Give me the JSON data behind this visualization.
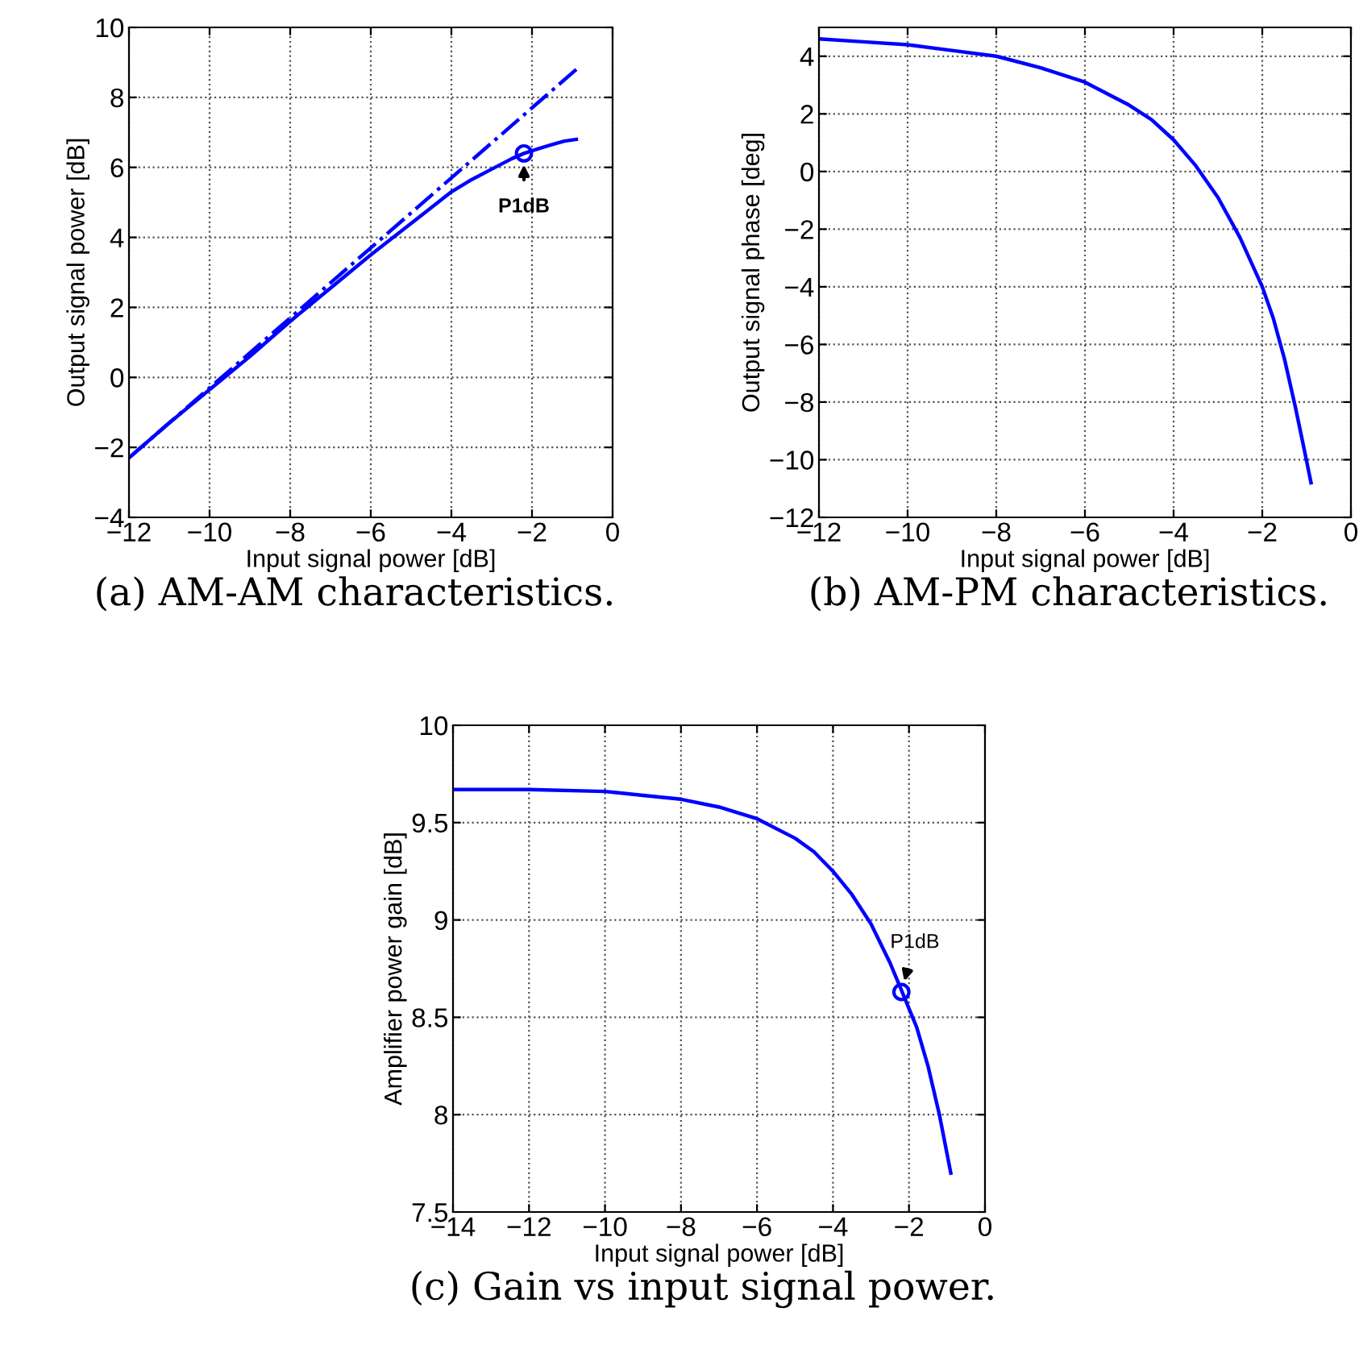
{
  "chart_data": [
    {
      "type": "line",
      "xlabel": "Input signal power [dB]",
      "ylabel": "Output signal power [dB]",
      "xlim": [
        -12,
        0
      ],
      "ylim": [
        -4,
        10
      ],
      "xticks": [
        -12,
        -10,
        -8,
        -6,
        -4,
        -2,
        0
      ],
      "yticks": [
        -4,
        -2,
        0,
        2,
        4,
        6,
        8,
        10
      ],
      "grid": true,
      "series": [
        {
          "color": "#0000ff",
          "line_style": "solid",
          "x": [
            -12,
            -11,
            -10,
            -9,
            -8,
            -7,
            -6,
            -5,
            -4,
            -3.5,
            -3,
            -2.5,
            -2.2,
            -1.8,
            -1.5,
            -1.2,
            -0.9
          ],
          "values": [
            -2.3,
            -1.3,
            -0.35,
            0.6,
            1.6,
            2.55,
            3.5,
            4.4,
            5.3,
            5.65,
            5.95,
            6.25,
            6.4,
            6.55,
            6.65,
            6.75,
            6.8
          ]
        },
        {
          "color": "#0000ff",
          "line_style": "dashdot",
          "x": [
            -12,
            -0.9
          ],
          "values": [
            -2.3,
            8.8
          ]
        },
        {
          "type": "scatter",
          "color": "#0000ff",
          "marker": "circle",
          "x": [
            -2.2
          ],
          "values": [
            6.4
          ]
        }
      ],
      "annotations": [
        {
          "text": "P1dB",
          "x": -2.2,
          "y": 6.4
        },
        "(a) AM-AM characteristics."
      ]
    },
    {
      "type": "line",
      "xlabel": "Input signal power [dB]",
      "ylabel": "Output signal phase [deg]",
      "xlim": [
        -12,
        0
      ],
      "ylim": [
        -12,
        5
      ],
      "xticks": [
        -12,
        -10,
        -8,
        -6,
        -4,
        -2,
        0
      ],
      "yticks": [
        -12,
        -10,
        -8,
        -6,
        -4,
        -2,
        0,
        2,
        4
      ],
      "grid": true,
      "series": [
        {
          "color": "#0000ff",
          "line_style": "solid",
          "x": [
            -12,
            -11,
            -10,
            -9,
            -8,
            -7,
            -6,
            -5,
            -4.5,
            -4,
            -3.5,
            -3,
            -2.5,
            -2,
            -1.75,
            -1.5,
            -1.25,
            -1.1,
            -0.9
          ],
          "values": [
            4.6,
            4.5,
            4.4,
            4.2,
            4.0,
            3.6,
            3.1,
            2.3,
            1.8,
            1.1,
            0.2,
            -0.9,
            -2.3,
            -4.0,
            -5.1,
            -6.5,
            -8.2,
            -9.3,
            -10.8
          ]
        }
      ],
      "annotations": [
        "(b) AM-PM characteristics."
      ]
    },
    {
      "type": "line",
      "xlabel": "Input signal power [dB]",
      "ylabel": "Amplifier power gain [dB]",
      "xlim": [
        -14,
        0
      ],
      "ylim": [
        7.5,
        10
      ],
      "xticks": [
        -14,
        -12,
        -10,
        -8,
        -6,
        -4,
        -2,
        0
      ],
      "yticks": [
        7.5,
        8,
        8.5,
        9,
        9.5,
        10
      ],
      "grid": true,
      "series": [
        {
          "color": "#0000ff",
          "line_style": "solid",
          "x": [
            -14,
            -12,
            -10,
            -9,
            -8,
            -7,
            -6,
            -5,
            -4.5,
            -4,
            -3.5,
            -3,
            -2.5,
            -2.2,
            -1.8,
            -1.5,
            -1.2,
            -0.9
          ],
          "values": [
            9.67,
            9.67,
            9.66,
            9.64,
            9.62,
            9.58,
            9.52,
            9.42,
            9.35,
            9.25,
            9.13,
            8.98,
            8.78,
            8.64,
            8.45,
            8.25,
            8.0,
            7.7
          ]
        },
        {
          "type": "scatter",
          "color": "#0000ff",
          "marker": "circle",
          "x": [
            -2.2
          ],
          "values": [
            8.63
          ]
        }
      ],
      "annotations": [
        {
          "text": "P1dB",
          "x": -2.2,
          "y": 8.63
        },
        "(c) Gain vs input signal power."
      ]
    }
  ]
}
